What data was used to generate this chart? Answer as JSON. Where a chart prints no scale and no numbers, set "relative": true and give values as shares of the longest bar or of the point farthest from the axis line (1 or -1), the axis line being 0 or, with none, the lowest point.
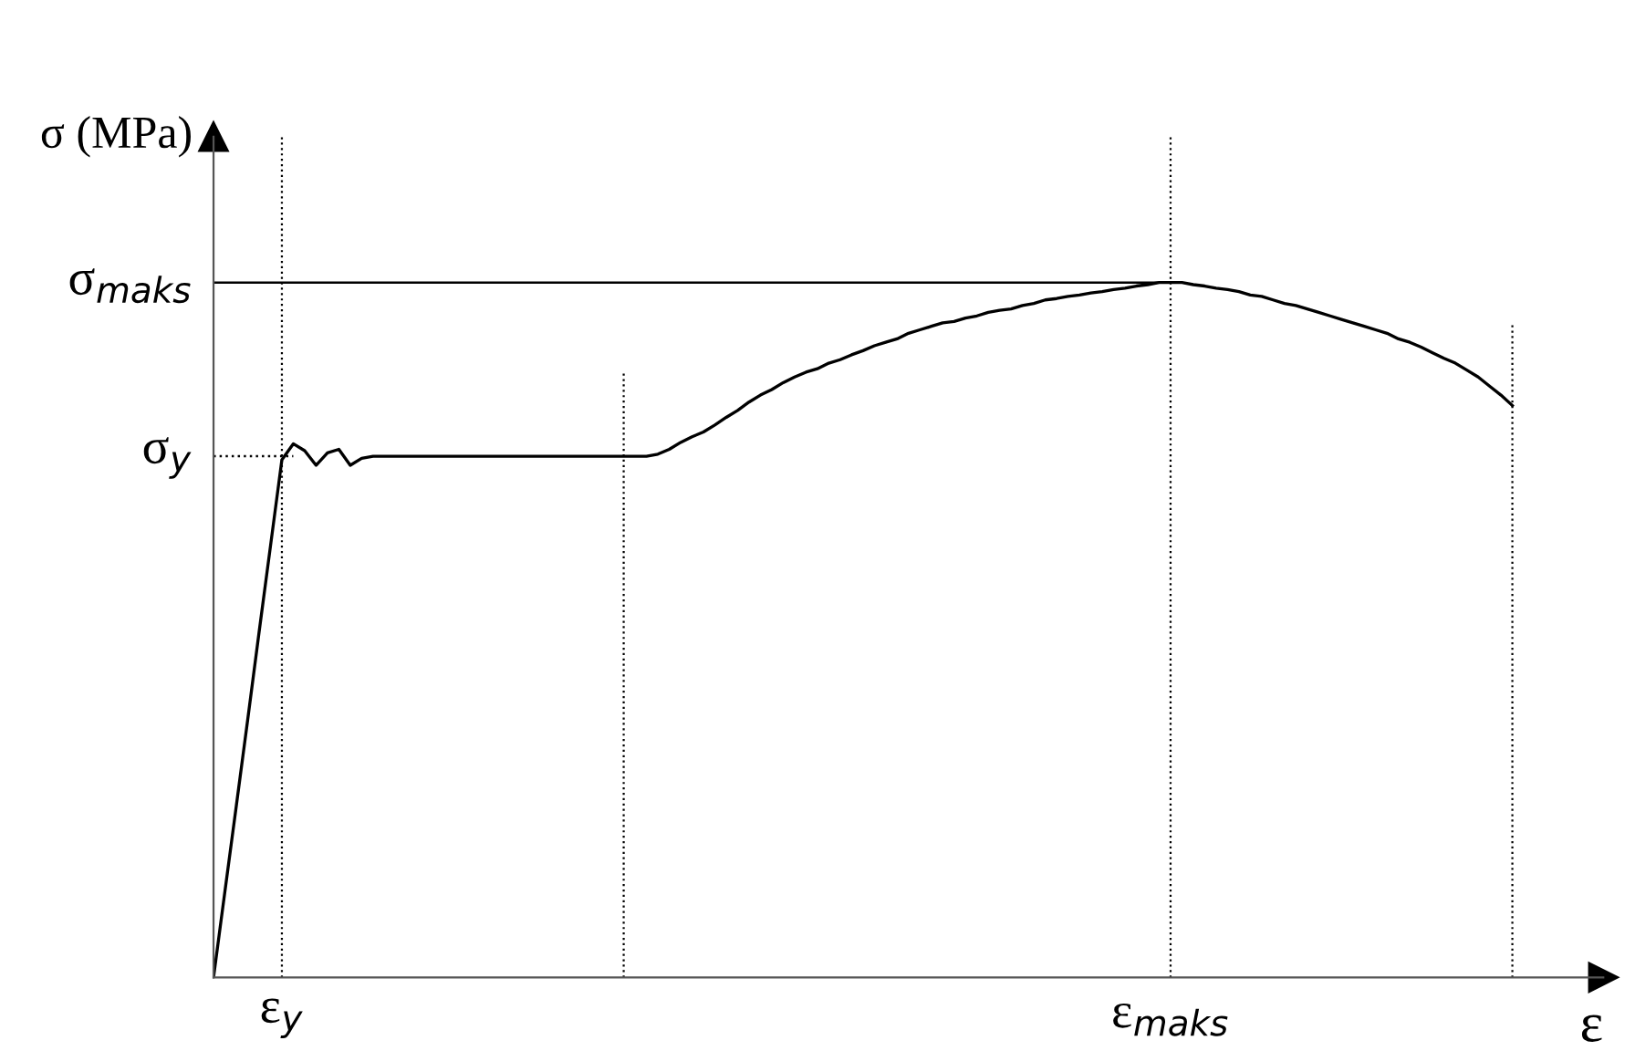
{
  "chart_data": {
    "type": "line",
    "relative": true,
    "xlabel": "ε",
    "ylabel": "σ (MPa)",
    "categories": [
      null,
      null,
      null,
      null,
      null,
      null,
      "ε$_{y}$",
      null,
      null,
      null,
      null,
      null,
      null,
      null,
      null,
      null,
      null,
      null,
      null,
      null,
      null,
      null,
      null,
      null,
      null,
      null,
      null,
      null,
      null,
      null,
      null,
      null,
      null,
      null,
      null,
      null,
      null,
      null,
      null,
      null,
      null,
      null,
      null,
      null,
      null,
      null,
      null,
      null,
      null,
      null,
      null,
      null,
      null,
      null,
      null,
      null,
      null,
      null,
      null,
      null,
      null,
      null,
      null,
      null,
      null,
      null,
      null,
      null,
      null,
      null,
      null,
      null,
      null,
      null,
      null,
      null,
      null,
      null,
      null,
      null,
      null,
      null,
      null,
      null,
      "ε$_{maks}$",
      null,
      null,
      null,
      null,
      null,
      null,
      null,
      null,
      null,
      null,
      null,
      null,
      null,
      null,
      null,
      null,
      null,
      null,
      null,
      null,
      null,
      null,
      null,
      null,
      null,
      null,
      null,
      null,
      null,
      null
    ],
    "series": [
      {
        "color": "#000000",
        "values": [
          0,
          0.124,
          0.247,
          0.371,
          0.497,
          0.621,
          0.745,
          0.768,
          0.758,
          0.737,
          0.755,
          0.76,
          0.737,
          0.747,
          0.75,
          0.75,
          0.75,
          0.75,
          0.75,
          0.75,
          0.75,
          0.75,
          0.75,
          0.75,
          0.75,
          0.75,
          0.75,
          0.75,
          0.75,
          0.75,
          0.75,
          0.75,
          0.75,
          0.75,
          0.75,
          0.75,
          0.75,
          0.75,
          0.75,
          0.753,
          0.76,
          0.77,
          0.778,
          0.785,
          0.795,
          0.806,
          0.816,
          0.828,
          0.838,
          0.846,
          0.856,
          0.864,
          0.871,
          0.876,
          0.884,
          0.889,
          0.896,
          0.902,
          0.909,
          0.914,
          0.919,
          0.927,
          0.932,
          0.937,
          0.942,
          0.944,
          0.949,
          0.952,
          0.957,
          0.96,
          0.962,
          0.967,
          0.97,
          0.975,
          0.977,
          0.98,
          0.982,
          0.985,
          0.987,
          0.99,
          0.992,
          0.995,
          0.997,
          1,
          1,
          1,
          0.997,
          0.995,
          0.992,
          0.99,
          0.987,
          0.982,
          0.98,
          0.975,
          0.97,
          0.967,
          0.962,
          0.957,
          0.952,
          0.947,
          0.942,
          0.937,
          0.932,
          0.927,
          0.919,
          0.914,
          0.907,
          0.899,
          0.891,
          0.884,
          0.874,
          0.864,
          0.851,
          0.838,
          0.823
        ]
      }
    ],
    "ref_lines": [
      {
        "axis": "y",
        "value": 0.75,
        "label": "σ$_{y}$",
        "line_style": "dotted"
      },
      {
        "axis": "y",
        "value": 1,
        "label": "σ$_{maks}$",
        "line_style": "solid"
      }
    ],
    "grid": "x",
    "legend": false
  }
}
